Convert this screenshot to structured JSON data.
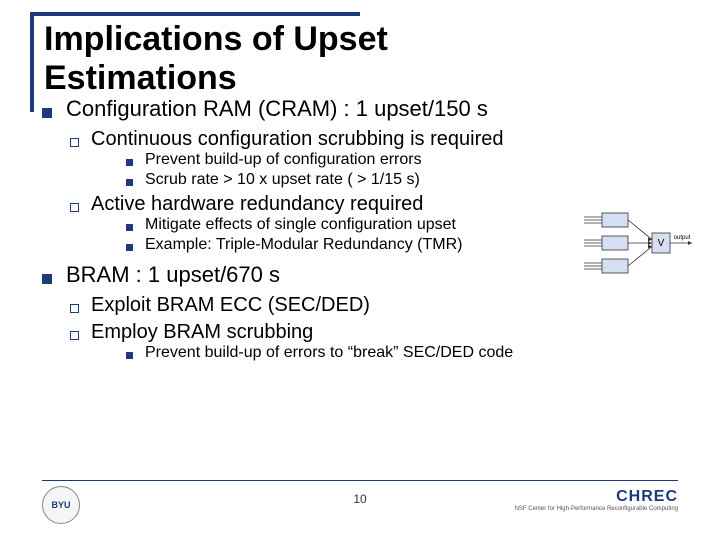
{
  "title": "Implications of Upset\nEstimations",
  "content": [
    {
      "text": "Configuration RAM (CRAM) : 1 upset/150 s",
      "children": [
        {
          "text": "Continuous configuration scrubbing is required",
          "children": [
            {
              "text": "Prevent build-up of configuration errors"
            },
            {
              "text": "Scrub rate > 10 x upset rate ( > 1/15 s)"
            }
          ]
        },
        {
          "text": "Active hardware redundancy required",
          "children": [
            {
              "text": "Mitigate effects of single configuration upset"
            },
            {
              "text": "Example: Triple-Modular Redundancy (TMR)"
            }
          ]
        }
      ]
    },
    {
      "text": "BRAM : 1 upset/670 s",
      "children": [
        {
          "text": "Exploit BRAM ECC (SEC/DED)",
          "children": []
        },
        {
          "text": "Employ BRAM scrubbing",
          "children": [
            {
              "text": "Prevent build-up of errors to “break” SEC/DED code"
            }
          ]
        }
      ]
    }
  ],
  "page_number": "10",
  "logo_left_text": "BYU",
  "logo_right_main": "CHREC",
  "logo_right_sub": "NSF Center for High-Performance\nReconfigurable Computing",
  "tmr": {
    "box_fill": "#d6dff2",
    "box_stroke": "#333333",
    "line_color": "#333333",
    "voter_label": "V",
    "output_label": "output"
  },
  "colors": {
    "accent": "#1f3a7a",
    "text": "#000000",
    "background": "#ffffff"
  }
}
